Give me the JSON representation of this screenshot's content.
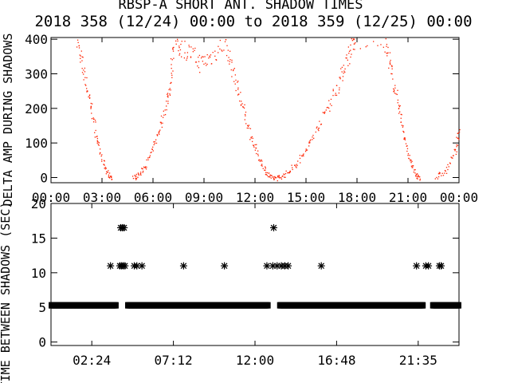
{
  "header": {
    "title": "RBSP-A SHORT ANT. SHADOW TIMES",
    "subtitle": "2018 358 (12/24) 00:00 to 2018 359 (12/25) 00:00"
  },
  "colors": {
    "points": "#ff2200",
    "axes": "#000000",
    "background": "#ffffff"
  },
  "chart_data": [
    {
      "type": "scatter",
      "ylabel": "DELTA AMP DURING SHADOWS",
      "xlabel": "",
      "xlim": [
        0,
        24
      ],
      "ylim": [
        -15,
        405
      ],
      "x_unit": "hours UT",
      "xticks": [
        "00:00",
        "03:00",
        "06:00",
        "09:00",
        "12:00",
        "15:00",
        "18:00",
        "21:00",
        "00:00"
      ],
      "yticks": [
        "0",
        "100",
        "200",
        "300",
        "400"
      ],
      "grid": false,
      "series": [
        {
          "point_style": "dot",
          "envelope_points": [
            [
              1.5,
              400
            ],
            [
              1.8,
              330
            ],
            [
              2.1,
              260
            ],
            [
              2.4,
              190
            ],
            [
              2.7,
              110
            ],
            [
              3.0,
              50
            ],
            [
              3.3,
              10
            ],
            [
              3.6,
              0
            ],
            [
              4.8,
              0
            ],
            [
              5.2,
              10
            ],
            [
              5.6,
              40
            ],
            [
              6.0,
              90
            ],
            [
              6.4,
              150
            ],
            [
              6.8,
              220
            ],
            [
              7.0,
              280
            ],
            [
              7.2,
              400
            ],
            [
              7.6,
              380
            ],
            [
              8.2,
              360
            ],
            [
              8.8,
              330
            ],
            [
              9.4,
              350
            ],
            [
              10.2,
              390
            ],
            [
              10.6,
              320
            ],
            [
              11.0,
              250
            ],
            [
              11.4,
              180
            ],
            [
              11.8,
              110
            ],
            [
              12.2,
              60
            ],
            [
              12.6,
              20
            ],
            [
              12.9,
              0
            ],
            [
              13.3,
              0
            ],
            [
              13.8,
              10
            ],
            [
              14.4,
              40
            ],
            [
              15.0,
              80
            ],
            [
              15.6,
              140
            ],
            [
              16.2,
              200
            ],
            [
              16.8,
              260
            ],
            [
              17.2,
              320
            ],
            [
              17.6,
              370
            ],
            [
              17.9,
              400
            ],
            [
              19.6,
              400
            ],
            [
              19.9,
              330
            ],
            [
              20.2,
              260
            ],
            [
              20.5,
              190
            ],
            [
              20.8,
              110
            ],
            [
              21.1,
              50
            ],
            [
              21.4,
              10
            ],
            [
              21.7,
              0
            ],
            [
              22.6,
              0
            ],
            [
              23.2,
              20
            ],
            [
              23.8,
              80
            ],
            [
              24.0,
              140
            ]
          ]
        }
      ]
    },
    {
      "type": "scatter",
      "ylabel": "TIME BETWEEN SHADOWS (SEC)",
      "xlabel": "",
      "xlim": [
        0,
        24
      ],
      "ylim": [
        -0.5,
        20
      ],
      "x_unit": "hours UT",
      "xticks": [
        "02:24",
        "07:12",
        "12:00",
        "16:48",
        "21:35"
      ],
      "yticks": [
        "0",
        "5",
        "10",
        "15",
        "20"
      ],
      "grid": false,
      "series": [
        {
          "point_style": "asterisk",
          "baseline_value": 5.3,
          "baseline_range": [
            0.0,
            24.0
          ],
          "baseline_gaps": [
            3.9,
            4.5,
            12.8,
            13.4,
            21.9,
            22.4
          ],
          "points": [
            [
              3.5,
              11
            ],
            [
              4.05,
              11
            ],
            [
              4.15,
              11
            ],
            [
              4.25,
              11
            ],
            [
              4.35,
              11
            ],
            [
              4.9,
              11
            ],
            [
              5.05,
              11
            ],
            [
              5.35,
              11
            ],
            [
              7.8,
              11
            ],
            [
              10.2,
              11
            ],
            [
              12.7,
              11
            ],
            [
              13.05,
              11
            ],
            [
              13.3,
              11
            ],
            [
              13.55,
              11
            ],
            [
              13.75,
              11
            ],
            [
              13.95,
              11
            ],
            [
              15.9,
              11
            ],
            [
              21.5,
              11
            ],
            [
              22.05,
              11
            ],
            [
              22.2,
              11
            ],
            [
              22.85,
              11
            ],
            [
              22.95,
              11
            ],
            [
              4.1,
              16.5
            ],
            [
              4.2,
              16.5
            ],
            [
              4.3,
              16.5
            ],
            [
              13.1,
              16.5
            ]
          ]
        }
      ]
    }
  ]
}
